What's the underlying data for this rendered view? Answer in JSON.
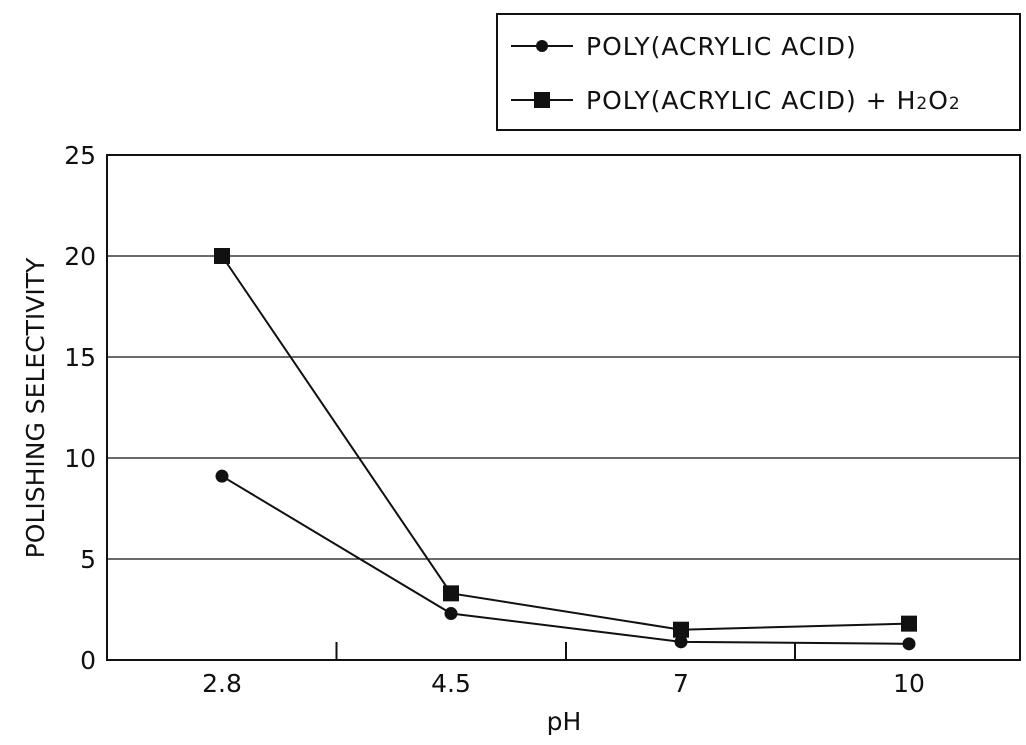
{
  "chart_data": {
    "type": "line",
    "title": "",
    "xlabel": "pH",
    "ylabel": "POLISHING SELECTIVITY",
    "categories": [
      "2.8",
      "4.5",
      "7",
      "10"
    ],
    "ylim": [
      0,
      25
    ],
    "yticks": [
      "0",
      "5",
      "10",
      "15",
      "20",
      "25"
    ],
    "grid": true,
    "legend_position": "top-right",
    "series": [
      {
        "name": "POLY(ACRYLIC ACID)",
        "marker": "circle",
        "values": [
          9.1,
          2.3,
          0.9,
          0.8
        ]
      },
      {
        "name": "POLY(ACRYLIC ACID) + H2O2",
        "name_main": "POLY(ACRYLIC ACID) + H",
        "marker": "square",
        "values": [
          20,
          3.3,
          1.5,
          1.8
        ]
      }
    ]
  }
}
